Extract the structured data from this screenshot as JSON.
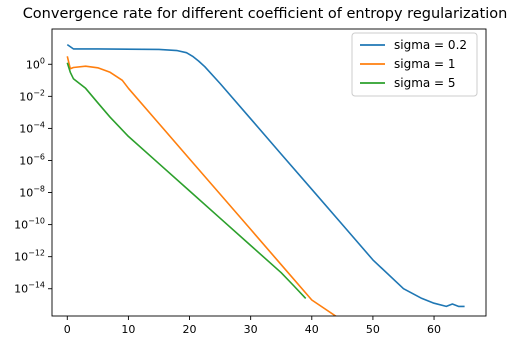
{
  "chart_data": {
    "type": "line",
    "title": "Convergence rate for different coefficient of entropy regularization",
    "xlabel": "",
    "ylabel": "",
    "xlim": [
      -2.5,
      68.5
    ],
    "ylim_log10": [
      -15.7,
      2.2
    ],
    "yscale": "log",
    "grid": false,
    "legend_position": "top-right",
    "x_ticks": [
      0,
      10,
      20,
      30,
      40,
      50,
      60
    ],
    "x_tick_labels": [
      "0",
      "10",
      "20",
      "30",
      "40",
      "50",
      "60"
    ],
    "y_ticks_log10": [
      0,
      -2,
      -4,
      -6,
      -8,
      -10,
      -12,
      -14
    ],
    "y_tick_bases": [
      "10",
      "10",
      "10",
      "10",
      "10",
      "10",
      "10",
      "10"
    ],
    "y_tick_exponents": [
      "0",
      "−2",
      "−4",
      "−6",
      "−8",
      "−10",
      "−12",
      "−14"
    ],
    "series": [
      {
        "name": "sigma = 0.2",
        "color": "#1f77b4",
        "points_log10": [
          [
            0,
            1.23
          ],
          [
            1,
            0.96
          ],
          [
            5,
            0.96
          ],
          [
            15,
            0.93
          ],
          [
            18,
            0.85
          ],
          [
            19.5,
            0.72
          ],
          [
            20.5,
            0.5
          ],
          [
            21.5,
            0.2
          ],
          [
            22.5,
            -0.15
          ],
          [
            25,
            -1.2
          ],
          [
            30,
            -3.4
          ],
          [
            35,
            -5.6
          ],
          [
            40,
            -7.8
          ],
          [
            45,
            -10.0
          ],
          [
            50,
            -12.2
          ],
          [
            55,
            -14.0
          ],
          [
            58,
            -14.6
          ],
          [
            60,
            -14.9
          ],
          [
            62,
            -15.1
          ],
          [
            63,
            -14.95
          ],
          [
            64,
            -15.1
          ],
          [
            65,
            -15.1
          ]
        ]
      },
      {
        "name": "sigma = 1",
        "color": "#ff7f0e",
        "points_log10": [
          [
            0,
            0.5
          ],
          [
            0.5,
            -0.28
          ],
          [
            1,
            -0.2
          ],
          [
            3,
            -0.12
          ],
          [
            5,
            -0.22
          ],
          [
            7,
            -0.5
          ],
          [
            9,
            -1.0
          ],
          [
            10,
            -1.5
          ],
          [
            15,
            -3.7
          ],
          [
            20,
            -5.9
          ],
          [
            25,
            -8.1
          ],
          [
            30,
            -10.3
          ],
          [
            35,
            -12.5
          ],
          [
            40,
            -14.7
          ],
          [
            47,
            -16.5
          ]
        ]
      },
      {
        "name": "sigma = 5",
        "color": "#2ca02c",
        "points_log10": [
          [
            0,
            0.1
          ],
          [
            0.5,
            -0.5
          ],
          [
            1,
            -0.9
          ],
          [
            2,
            -1.2
          ],
          [
            3,
            -1.5
          ],
          [
            5,
            -2.4
          ],
          [
            7,
            -3.3
          ],
          [
            10,
            -4.5
          ],
          [
            15,
            -6.2
          ],
          [
            20,
            -7.9
          ],
          [
            25,
            -9.6
          ],
          [
            30,
            -11.3
          ],
          [
            35,
            -13.0
          ],
          [
            37,
            -13.8
          ],
          [
            39,
            -14.6
          ]
        ]
      }
    ]
  }
}
